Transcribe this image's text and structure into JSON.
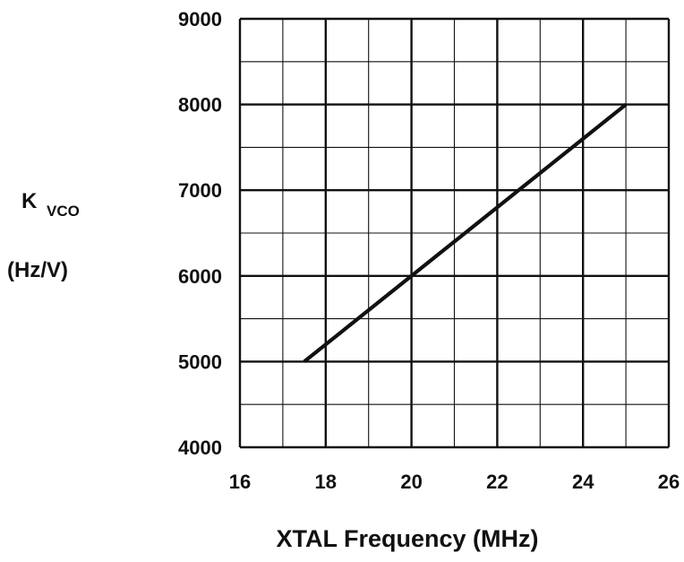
{
  "chart_data": {
    "type": "line",
    "xlabel": "XTAL Frequency (MHz)",
    "ylabel_main": "K",
    "ylabel_sub": "VCO",
    "ylabel_units": "(Hz/V)",
    "xlim": [
      16,
      26
    ],
    "ylim": [
      4000,
      9000
    ],
    "x_ticks": [
      "16",
      "18",
      "20",
      "22",
      "24",
      "26"
    ],
    "y_ticks": [
      "4000",
      "5000",
      "6000",
      "7000",
      "8000",
      "9000"
    ],
    "x_tick_values": [
      16,
      18,
      20,
      22,
      24,
      26
    ],
    "y_tick_values": [
      4000,
      5000,
      6000,
      7000,
      8000,
      9000
    ],
    "x_minor_step": 1,
    "y_minor_step": 500,
    "grid": true,
    "series": [
      {
        "x": [
          17.5,
          25
        ],
        "y": [
          5000,
          8000
        ]
      }
    ],
    "colors": {
      "line": "#111111",
      "grid": "#111111",
      "background": "#ffffff"
    }
  }
}
